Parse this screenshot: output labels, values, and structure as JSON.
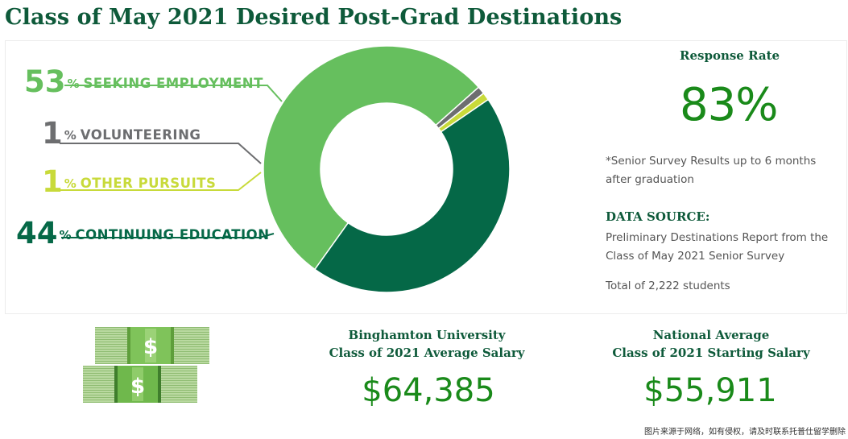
{
  "page": {
    "title": "Class of May 2021 Desired Post-Grad Destinations"
  },
  "chart_data": {
    "type": "pie",
    "title": "",
    "slices": [
      {
        "label": "SEEKING EMPLOYMENT",
        "value": 53,
        "color": "#66bf5e"
      },
      {
        "label": "VOLUNTEERING",
        "value": 1,
        "color": "#6d6e70"
      },
      {
        "label": "OTHER PURSUITS",
        "value": 1,
        "color": "#c8da3a"
      },
      {
        "label": "CONTINUING EDUCATION",
        "value": 44,
        "color": "#056847"
      }
    ],
    "unit": "%"
  },
  "labels": [
    {
      "pct": "53",
      "sign": "%",
      "text": "SEEKING EMPLOYMENT",
      "color": "#66bf5e"
    },
    {
      "pct": "1",
      "sign": "%",
      "text": "VOLUNTEERING",
      "color": "#6d6e70"
    },
    {
      "pct": "1",
      "sign": "%",
      "text": "OTHER PURSUITS",
      "color": "#c8da3a"
    },
    {
      "pct": "44",
      "sign": "%",
      "text": "CONTINUING EDUCATION",
      "color": "#056847"
    }
  ],
  "response": {
    "heading": "Response Rate",
    "value": "83%",
    "note": "*Senior Survey Results up to 6 months after graduation"
  },
  "source": {
    "heading": "DATA SOURCE:",
    "text": "Preliminary Destinations Report from the Class of May 2021 Senior Survey",
    "total": "Total of 2,222 students"
  },
  "salaries": {
    "bu": {
      "line1": "Binghamton University",
      "line2": "Class of 2021 Average Salary",
      "value": "$64,385"
    },
    "national": {
      "line1": "National Average",
      "line2": "Class of 2021 Starting Salary",
      "value": "$55,911"
    }
  },
  "money_icon": {
    "name": "money-stack-icon",
    "symbol": "$"
  },
  "footer_note": "图片来源于网络，如有侵权，请及时联系托普仕留学删除"
}
